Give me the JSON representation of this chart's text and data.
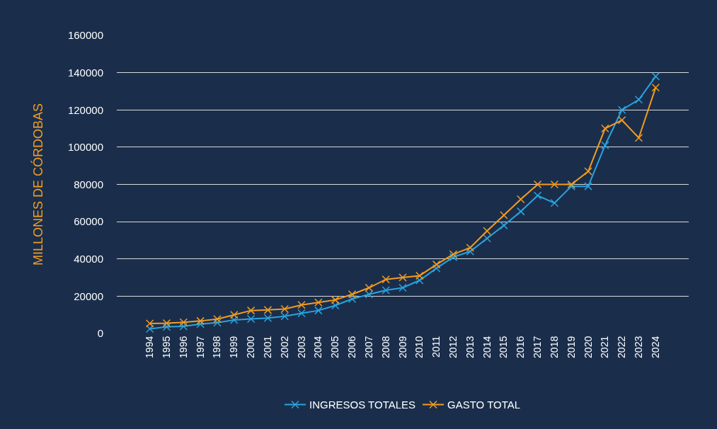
{
  "chart_data": {
    "type": "line",
    "ylabel": "MILLONES DE CÓRDOBAS",
    "categories": [
      "1994",
      "1995",
      "1996",
      "1997",
      "1998",
      "1999",
      "2000",
      "2001",
      "2002",
      "2003",
      "2004",
      "2005",
      "2006",
      "2007",
      "2008",
      "2009",
      "2010",
      "2011",
      "2012",
      "2013",
      "2014",
      "2015",
      "2016",
      "2017",
      "2018",
      "2019",
      "2020",
      "2021",
      "2022",
      "2023",
      "2024"
    ],
    "series": [
      {
        "name": "INGRESOS TOTALES",
        "color": "#2aa3dc",
        "values": [
          2500,
          3500,
          3800,
          5000,
          5800,
          7200,
          7800,
          8300,
          9200,
          10800,
          12300,
          15000,
          18500,
          21000,
          23200,
          24500,
          28500,
          35000,
          41000,
          44000,
          51000,
          58000,
          65500,
          74000,
          70000,
          79000,
          79000,
          101000,
          120000,
          125500,
          138000
        ]
      },
      {
        "name": "GASTO TOTAL",
        "color": "#f39c1f",
        "values": [
          5300,
          5500,
          6000,
          6700,
          7700,
          10000,
          12300,
          12600,
          13100,
          15300,
          16600,
          18000,
          21000,
          24500,
          29000,
          30000,
          31000,
          37000,
          42500,
          46000,
          55000,
          63500,
          72000,
          80000,
          80000,
          80000,
          87000,
          110000,
          114500,
          105000,
          132000
        ]
      }
    ],
    "ylim": [
      0,
      160000
    ],
    "yticks": [
      0,
      20000,
      40000,
      60000,
      80000,
      100000,
      120000,
      140000,
      160000
    ],
    "grid": "y",
    "legend": "bottom",
    "marker": "cross",
    "line_style": "solid"
  }
}
